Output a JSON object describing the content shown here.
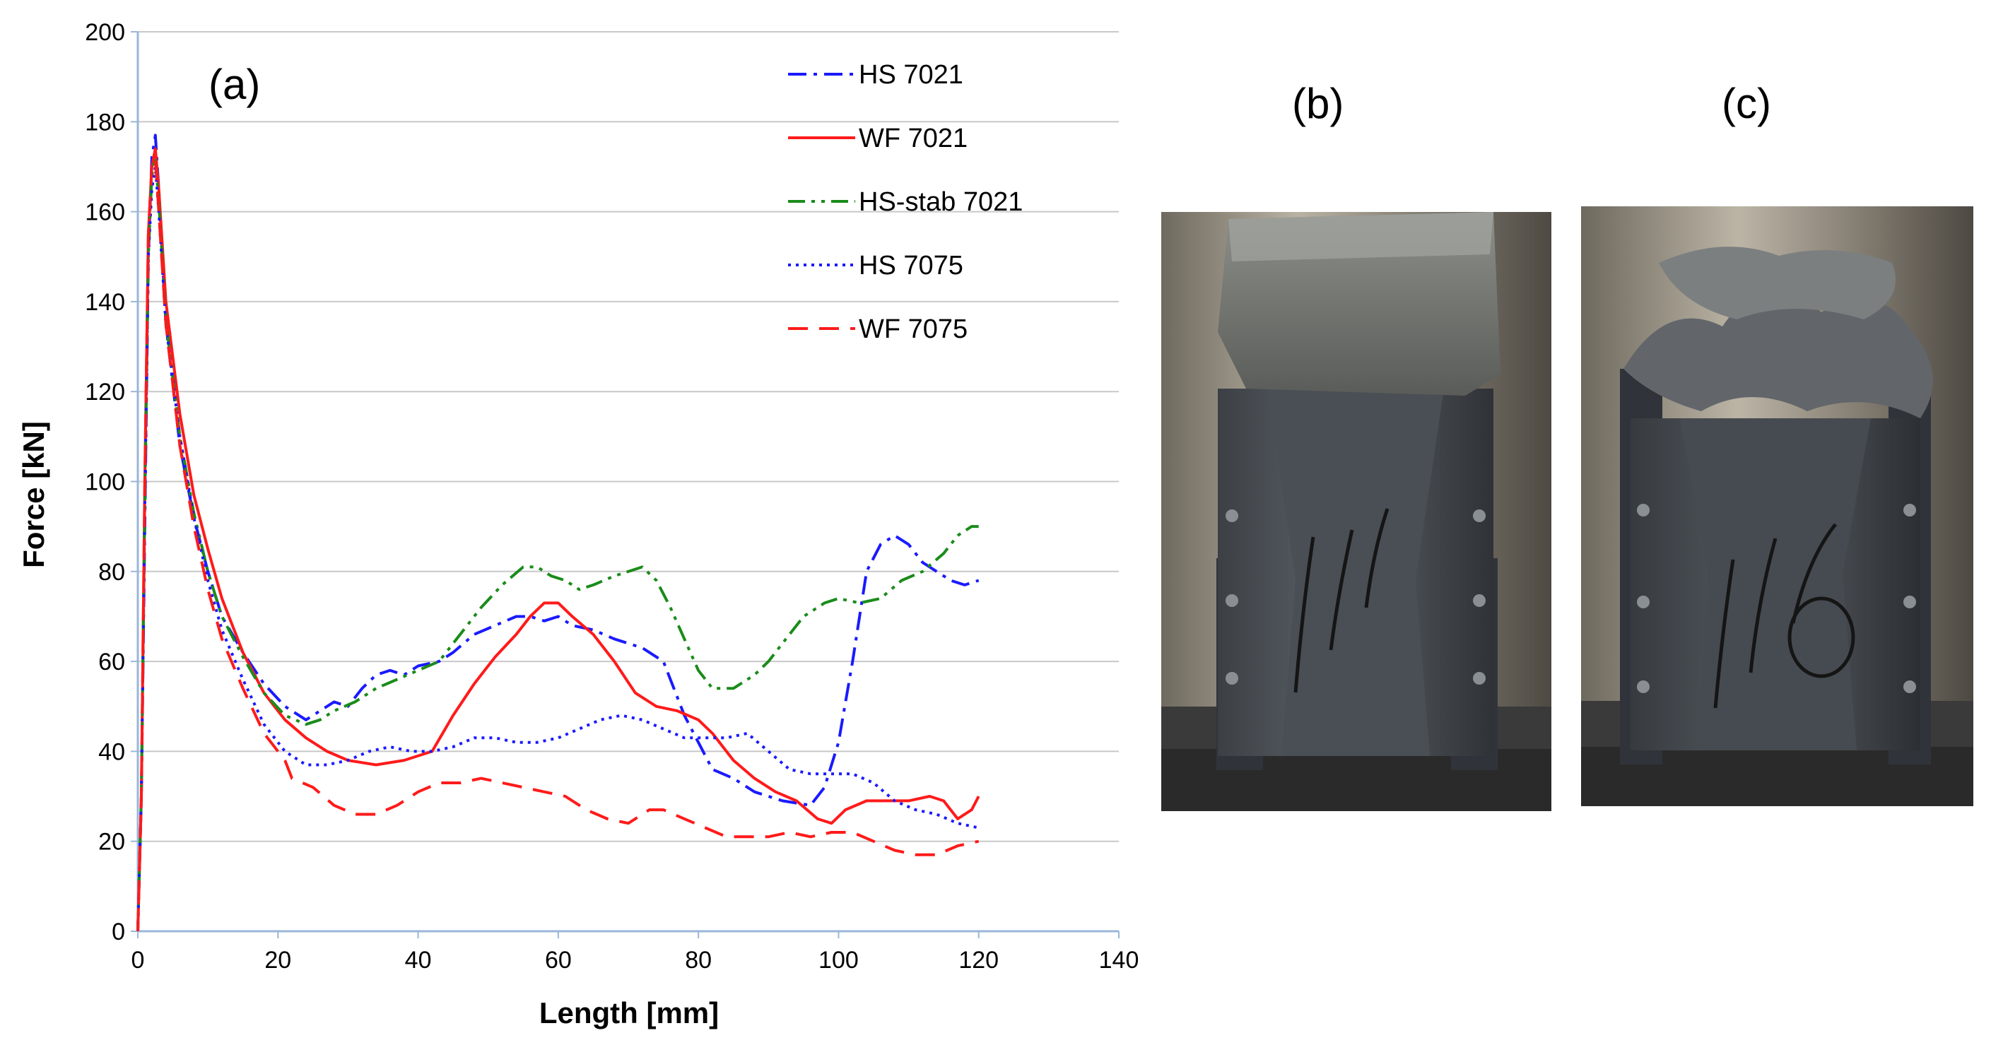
{
  "chart_data": {
    "type": "line",
    "panel_label": "(a)",
    "xlabel": "Length [mm]",
    "ylabel": "Force [kN]",
    "xlim": [
      0,
      140
    ],
    "ylim": [
      0,
      200
    ],
    "xticks": [
      "0",
      "20",
      "40",
      "60",
      "80",
      "100",
      "120",
      "140"
    ],
    "yticks": [
      "0",
      "20",
      "40",
      "60",
      "80",
      "100",
      "120",
      "140",
      "160",
      "180",
      "200"
    ],
    "grid": "horizontal",
    "legend_position": "top-right",
    "series": [
      {
        "name": "HS 7021",
        "color": "#1a1aff",
        "dash": "dashdot",
        "points": [
          [
            0,
            0
          ],
          [
            0.5,
            30
          ],
          [
            1,
            90
          ],
          [
            1.5,
            150
          ],
          [
            2,
            172
          ],
          [
            2.5,
            177
          ],
          [
            3,
            165
          ],
          [
            4,
            135
          ],
          [
            6,
            108
          ],
          [
            8,
            92
          ],
          [
            10,
            80
          ],
          [
            12,
            70
          ],
          [
            15,
            62
          ],
          [
            18,
            55
          ],
          [
            21,
            50
          ],
          [
            24,
            47
          ],
          [
            26,
            49
          ],
          [
            28,
            51
          ],
          [
            30,
            50
          ],
          [
            32,
            54
          ],
          [
            34,
            57
          ],
          [
            36,
            58
          ],
          [
            38,
            57
          ],
          [
            40,
            59
          ],
          [
            43,
            60
          ],
          [
            45,
            62
          ],
          [
            48,
            66
          ],
          [
            51,
            68
          ],
          [
            54,
            70
          ],
          [
            56,
            70
          ],
          [
            58,
            69
          ],
          [
            60,
            70
          ],
          [
            62,
            68
          ],
          [
            65,
            67
          ],
          [
            68,
            65
          ],
          [
            70,
            64
          ],
          [
            72,
            63
          ],
          [
            75,
            60
          ],
          [
            78,
            48
          ],
          [
            80,
            42
          ],
          [
            82,
            36
          ],
          [
            85,
            34
          ],
          [
            88,
            31
          ],
          [
            92,
            29
          ],
          [
            96,
            28
          ],
          [
            98,
            32
          ],
          [
            100,
            42
          ],
          [
            102,
            60
          ],
          [
            104,
            80
          ],
          [
            106,
            86
          ],
          [
            108,
            88
          ],
          [
            110,
            86
          ],
          [
            112,
            82
          ],
          [
            114,
            80
          ],
          [
            116,
            78
          ],
          [
            118,
            77
          ],
          [
            120,
            78
          ]
        ]
      },
      {
        "name": "WF 7021",
        "color": "#ff1a1a",
        "dash": "solid",
        "points": [
          [
            0,
            0
          ],
          [
            0.5,
            30
          ],
          [
            1,
            100
          ],
          [
            1.5,
            155
          ],
          [
            2,
            170
          ],
          [
            2.5,
            174
          ],
          [
            3,
            165
          ],
          [
            4,
            140
          ],
          [
            6,
            115
          ],
          [
            8,
            97
          ],
          [
            10,
            85
          ],
          [
            12,
            74
          ],
          [
            15,
            62
          ],
          [
            18,
            53
          ],
          [
            21,
            47
          ],
          [
            24,
            43
          ],
          [
            27,
            40
          ],
          [
            30,
            38
          ],
          [
            34,
            37
          ],
          [
            38,
            38
          ],
          [
            42,
            40
          ],
          [
            45,
            48
          ],
          [
            48,
            55
          ],
          [
            51,
            61
          ],
          [
            54,
            66
          ],
          [
            56,
            70
          ],
          [
            58,
            73
          ],
          [
            60,
            73
          ],
          [
            62,
            70
          ],
          [
            65,
            66
          ],
          [
            68,
            60
          ],
          [
            71,
            53
          ],
          [
            74,
            50
          ],
          [
            77,
            49
          ],
          [
            80,
            47
          ],
          [
            82,
            44
          ],
          [
            85,
            38
          ],
          [
            88,
            34
          ],
          [
            91,
            31
          ],
          [
            94,
            29
          ],
          [
            97,
            25
          ],
          [
            99,
            24
          ],
          [
            101,
            27
          ],
          [
            104,
            29
          ],
          [
            107,
            29
          ],
          [
            110,
            29
          ],
          [
            113,
            30
          ],
          [
            115,
            29
          ],
          [
            117,
            25
          ],
          [
            119,
            27
          ],
          [
            120,
            30
          ]
        ]
      },
      {
        "name": "HS-stab 7021",
        "color": "#1a8c1a",
        "dash": "dashdotdot",
        "points": [
          [
            0,
            0
          ],
          [
            0.5,
            30
          ],
          [
            1,
            95
          ],
          [
            1.5,
            150
          ],
          [
            2,
            168
          ],
          [
            2.5,
            172
          ],
          [
            3,
            162
          ],
          [
            4,
            136
          ],
          [
            6,
            110
          ],
          [
            8,
            93
          ],
          [
            10,
            80
          ],
          [
            12,
            70
          ],
          [
            15,
            61
          ],
          [
            18,
            53
          ],
          [
            21,
            48
          ],
          [
            24,
            46
          ],
          [
            26,
            47
          ],
          [
            28,
            49
          ],
          [
            31,
            51
          ],
          [
            34,
            54
          ],
          [
            37,
            56
          ],
          [
            40,
            58
          ],
          [
            43,
            60
          ],
          [
            46,
            66
          ],
          [
            49,
            72
          ],
          [
            52,
            77
          ],
          [
            55,
            81
          ],
          [
            57,
            81
          ],
          [
            59,
            79
          ],
          [
            61,
            78
          ],
          [
            63,
            76
          ],
          [
            65,
            77
          ],
          [
            68,
            79
          ],
          [
            70,
            80
          ],
          [
            72,
            81
          ],
          [
            74,
            78
          ],
          [
            76,
            72
          ],
          [
            78,
            65
          ],
          [
            80,
            58
          ],
          [
            82,
            54
          ],
          [
            85,
            54
          ],
          [
            88,
            57
          ],
          [
            90,
            60
          ],
          [
            92,
            64
          ],
          [
            95,
            70
          ],
          [
            98,
            73
          ],
          [
            100,
            74
          ],
          [
            103,
            73
          ],
          [
            106,
            74
          ],
          [
            109,
            78
          ],
          [
            112,
            80
          ],
          [
            115,
            84
          ],
          [
            117,
            88
          ],
          [
            119,
            90
          ],
          [
            120,
            90
          ]
        ]
      },
      {
        "name": "HS 7075",
        "color": "#1a1aff",
        "dash": "dotted",
        "points": [
          [
            0,
            0
          ],
          [
            0.5,
            30
          ],
          [
            1,
            95
          ],
          [
            1.5,
            150
          ],
          [
            2,
            165
          ],
          [
            2.5,
            170
          ],
          [
            3,
            160
          ],
          [
            4,
            135
          ],
          [
            6,
            110
          ],
          [
            8,
            92
          ],
          [
            10,
            78
          ],
          [
            12,
            67
          ],
          [
            15,
            56
          ],
          [
            18,
            46
          ],
          [
            21,
            40
          ],
          [
            24,
            37
          ],
          [
            27,
            37
          ],
          [
            30,
            38
          ],
          [
            33,
            40
          ],
          [
            36,
            41
          ],
          [
            39,
            40
          ],
          [
            42,
            40
          ],
          [
            45,
            41
          ],
          [
            48,
            43
          ],
          [
            51,
            43
          ],
          [
            54,
            42
          ],
          [
            57,
            42
          ],
          [
            60,
            43
          ],
          [
            63,
            45
          ],
          [
            66,
            47
          ],
          [
            69,
            48
          ],
          [
            72,
            47
          ],
          [
            75,
            45
          ],
          [
            78,
            43
          ],
          [
            81,
            43
          ],
          [
            84,
            43
          ],
          [
            87,
            44
          ],
          [
            90,
            40
          ],
          [
            93,
            36
          ],
          [
            96,
            35
          ],
          [
            99,
            35
          ],
          [
            102,
            35
          ],
          [
            105,
            33
          ],
          [
            108,
            29
          ],
          [
            111,
            27
          ],
          [
            114,
            26
          ],
          [
            117,
            24
          ],
          [
            120,
            23
          ]
        ]
      },
      {
        "name": "WF 7075",
        "color": "#ff1a1a",
        "dash": "dashed",
        "points": [
          [
            0,
            0
          ],
          [
            0.5,
            30
          ],
          [
            1,
            100
          ],
          [
            1.5,
            155
          ],
          [
            2,
            170
          ],
          [
            2.5,
            172
          ],
          [
            3,
            160
          ],
          [
            4,
            135
          ],
          [
            6,
            108
          ],
          [
            8,
            90
          ],
          [
            10,
            76
          ],
          [
            12,
            65
          ],
          [
            15,
            54
          ],
          [
            18,
            44
          ],
          [
            21,
            38
          ],
          [
            22,
            34
          ],
          [
            25,
            32
          ],
          [
            28,
            28
          ],
          [
            31,
            26
          ],
          [
            34,
            26
          ],
          [
            37,
            28
          ],
          [
            40,
            31
          ],
          [
            43,
            33
          ],
          [
            46,
            33
          ],
          [
            49,
            34
          ],
          [
            52,
            33
          ],
          [
            55,
            32
          ],
          [
            58,
            31
          ],
          [
            61,
            30
          ],
          [
            64,
            27
          ],
          [
            67,
            25
          ],
          [
            70,
            24
          ],
          [
            73,
            27
          ],
          [
            75,
            27
          ],
          [
            78,
            25
          ],
          [
            81,
            23
          ],
          [
            84,
            21
          ],
          [
            87,
            21
          ],
          [
            90,
            21
          ],
          [
            93,
            22
          ],
          [
            96,
            21
          ],
          [
            99,
            22
          ],
          [
            102,
            22
          ],
          [
            105,
            20
          ],
          [
            108,
            18
          ],
          [
            111,
            17
          ],
          [
            114,
            17
          ],
          [
            117,
            19
          ],
          [
            120,
            20
          ]
        ]
      }
    ]
  },
  "photos": {
    "b": {
      "label": "(b)"
    },
    "c": {
      "label": "(c)"
    }
  }
}
